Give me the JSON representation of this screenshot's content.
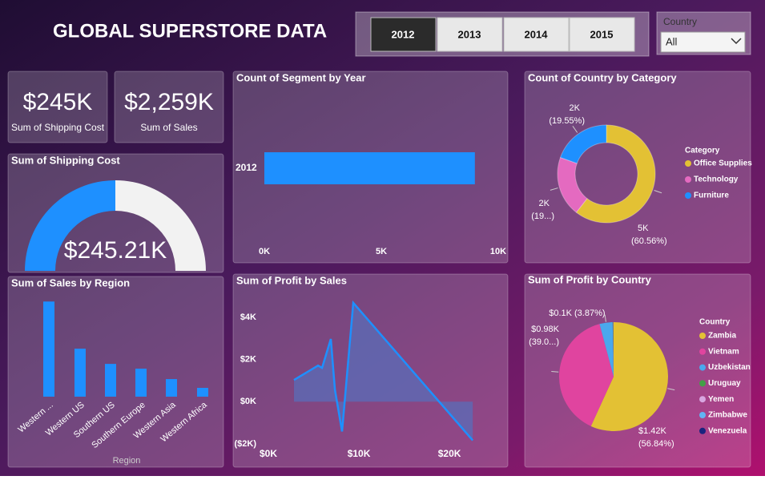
{
  "header": {
    "title": "GLOBAL SUPERSTORE DATA"
  },
  "year_slicer": {
    "options": [
      "2012",
      "2013",
      "2014",
      "2015"
    ],
    "selected": 0
  },
  "country_filter": {
    "label": "Country",
    "value": "All"
  },
  "cards": [
    {
      "value": "$245K",
      "label": "Sum of Shipping Cost"
    },
    {
      "value": "$2,259K",
      "label": "Sum of Sales"
    }
  ],
  "chart_data": [
    {
      "type": "gauge",
      "title": "Sum of Shipping Cost",
      "value": 245210,
      "value_label": "$245.21K",
      "ylim": [
        0,
        490420
      ],
      "color": "#1e90ff",
      "track_color": "#f2f2f2"
    },
    {
      "type": "bar",
      "horizontal": true,
      "title": "Count of Segment by Year",
      "categories": [
        "2012"
      ],
      "values": [
        9000
      ],
      "color": "#1e90ff",
      "xlim": [
        0,
        10000
      ],
      "xticks": [
        {
          "value": 0,
          "label": "0K"
        },
        {
          "value": 5000,
          "label": "5K"
        },
        {
          "value": 10000,
          "label": "10K"
        }
      ]
    },
    {
      "type": "donut",
      "title": "Count of Country by Category",
      "legend_title": "Category",
      "categories": [
        "Office Supplies",
        "Technology",
        "Furniture"
      ],
      "values": [
        60.56,
        19.89,
        19.55
      ],
      "value_labels": [
        "(60.56%)",
        "(19...)",
        "(19.55%)"
      ],
      "count_labels": [
        "5K",
        "2K",
        "2K"
      ],
      "colors": [
        "#e3c134",
        "#e46ac0",
        "#1e90ff"
      ]
    },
    {
      "type": "bar",
      "horizontal": false,
      "title": "Sum of Sales by Region",
      "x_label": "Region",
      "categories": [
        "Western ...",
        "Western US",
        "Southern US",
        "Southern Europe",
        "Western Asia",
        "Western Africa"
      ],
      "values": [
        357000,
        180000,
        123000,
        105000,
        66000,
        33000
      ],
      "ylim": [
        0,
        400000
      ],
      "color": "#1e90ff"
    },
    {
      "type": "area",
      "title": "Sum of Profit by Sales",
      "x": [
        2830,
        5490,
        5930,
        6900,
        7350,
        8140,
        9380,
        22570
      ],
      "values": [
        1030,
        1710,
        1600,
        2970,
        570,
        -1410,
        4680,
        -1830
      ],
      "xlim": [
        0,
        23000
      ],
      "ylim": [
        -2000,
        5000
      ],
      "xticks": [
        {
          "value": 0,
          "label": "$0K"
        },
        {
          "value": 10000,
          "label": "$10K"
        },
        {
          "value": 20000,
          "label": "$20K"
        }
      ],
      "yticks": [
        {
          "value": -2000,
          "label": "($2K)"
        },
        {
          "value": 0,
          "label": "$0K"
        },
        {
          "value": 2000,
          "label": "$2K"
        },
        {
          "value": 4000,
          "label": "$4K"
        }
      ],
      "color": "#1e90ff",
      "fill": "#5a6cb8"
    },
    {
      "type": "pie",
      "title": "Sum of Profit by Country",
      "legend_title": "Country",
      "categories": [
        "Zambia",
        "Vietnam",
        "Uzbekistan",
        "Uruguay",
        "Yemen",
        "Zimbabwe",
        "Venezuela"
      ],
      "values": [
        1422,
        976,
        97,
        3,
        2,
        1,
        1
      ],
      "value_labels": [
        "$1.42K",
        "$0.98K",
        "$0.1K",
        null,
        null,
        null,
        null
      ],
      "percent_labels": [
        "(56.84%)",
        "(39.0...)",
        "(3.87%)",
        null,
        null,
        null,
        null
      ],
      "colors": [
        "#e3c134",
        "#e0449f",
        "#4aa8ee",
        "#43a047",
        "#d8a6e0",
        "#62b4f2",
        "#1a237e"
      ]
    }
  ]
}
